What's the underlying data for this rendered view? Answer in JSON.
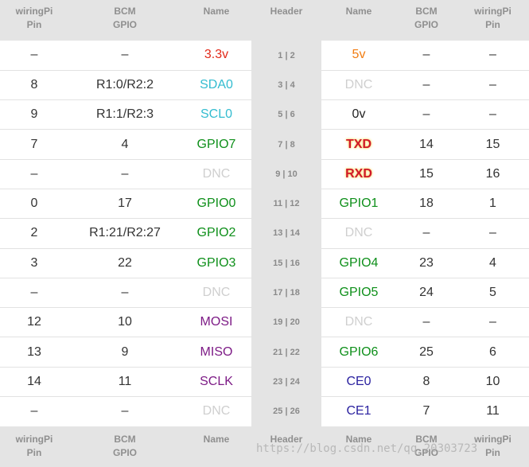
{
  "header": {
    "wiringpi_label": [
      "wiringPi",
      "Pin"
    ],
    "bcm_label": [
      "BCM",
      "GPIO"
    ],
    "name_label": "Name",
    "header_label": "Header"
  },
  "rows": [
    {
      "l_wpi": "–",
      "l_bcm": "–",
      "l_name": "3.3v",
      "l_cls": "power3",
      "hdr": "1 | 2",
      "r_name": "5v",
      "r_cls": "power5",
      "r_bcm": "–",
      "r_wpi": "–"
    },
    {
      "l_wpi": "8",
      "l_bcm": "R1:0/R2:2",
      "l_name": "SDA0",
      "l_cls": "i2c",
      "hdr": "3 | 4",
      "r_name": "DNC",
      "r_cls": "dnc",
      "r_bcm": "–",
      "r_wpi": "–"
    },
    {
      "l_wpi": "9",
      "l_bcm": "R1:1/R2:3",
      "l_name": "SCL0",
      "l_cls": "i2c",
      "hdr": "5 | 6",
      "r_name": "0v",
      "r_cls": "ground",
      "r_bcm": "–",
      "r_wpi": "–"
    },
    {
      "l_wpi": "7",
      "l_bcm": "4",
      "l_name": "GPIO7",
      "l_cls": "gpio",
      "hdr": "7 | 8",
      "r_name": "TXD",
      "r_cls": "uart",
      "r_bcm": "14",
      "r_wpi": "15"
    },
    {
      "l_wpi": "–",
      "l_bcm": "–",
      "l_name": "DNC",
      "l_cls": "dnc",
      "hdr": "9 | 10",
      "r_name": "RXD",
      "r_cls": "uart",
      "r_bcm": "15",
      "r_wpi": "16"
    },
    {
      "l_wpi": "0",
      "l_bcm": "17",
      "l_name": "GPIO0",
      "l_cls": "gpio",
      "hdr": "11 | 12",
      "r_name": "GPIO1",
      "r_cls": "gpio",
      "r_bcm": "18",
      "r_wpi": "1"
    },
    {
      "l_wpi": "2",
      "l_bcm": "R1:21/R2:27",
      "l_name": "GPIO2",
      "l_cls": "gpio",
      "hdr": "13 | 14",
      "r_name": "DNC",
      "r_cls": "dnc",
      "r_bcm": "–",
      "r_wpi": "–"
    },
    {
      "l_wpi": "3",
      "l_bcm": "22",
      "l_name": "GPIO3",
      "l_cls": "gpio",
      "hdr": "15 | 16",
      "r_name": "GPIO4",
      "r_cls": "gpio",
      "r_bcm": "23",
      "r_wpi": "4"
    },
    {
      "l_wpi": "–",
      "l_bcm": "–",
      "l_name": "DNC",
      "l_cls": "dnc",
      "hdr": "17 | 18",
      "r_name": "GPIO5",
      "r_cls": "gpio",
      "r_bcm": "24",
      "r_wpi": "5"
    },
    {
      "l_wpi": "12",
      "l_bcm": "10",
      "l_name": "MOSI",
      "l_cls": "spi",
      "hdr": "19 | 20",
      "r_name": "DNC",
      "r_cls": "dnc",
      "r_bcm": "–",
      "r_wpi": "–"
    },
    {
      "l_wpi": "13",
      "l_bcm": "9",
      "l_name": "MISO",
      "l_cls": "spi",
      "hdr": "21 | 22",
      "r_name": "GPIO6",
      "r_cls": "gpio",
      "r_bcm": "25",
      "r_wpi": "6"
    },
    {
      "l_wpi": "14",
      "l_bcm": "11",
      "l_name": "SCLK",
      "l_cls": "spi",
      "hdr": "23 | 24",
      "r_name": "CE0",
      "r_cls": "ce",
      "r_bcm": "8",
      "r_wpi": "10"
    },
    {
      "l_wpi": "–",
      "l_bcm": "–",
      "l_name": "DNC",
      "l_cls": "dnc",
      "hdr": "25 | 26",
      "r_name": "CE1",
      "r_cls": "ce",
      "r_bcm": "7",
      "r_wpi": "11"
    }
  ],
  "colors": {
    "power3": "#e22a1a",
    "power5": "#f27c10",
    "i2c": "#33bcd0",
    "ground": "#222222",
    "gpio": "#0e8f1a",
    "dnc": "#cfcfcf",
    "spi": "#7d1b86",
    "uart": "#d0182c",
    "ce": "#2b22a0",
    "header_bg": "#e4e4e4"
  },
  "watermark": "https://blog.csdn.net/qq_20303723"
}
